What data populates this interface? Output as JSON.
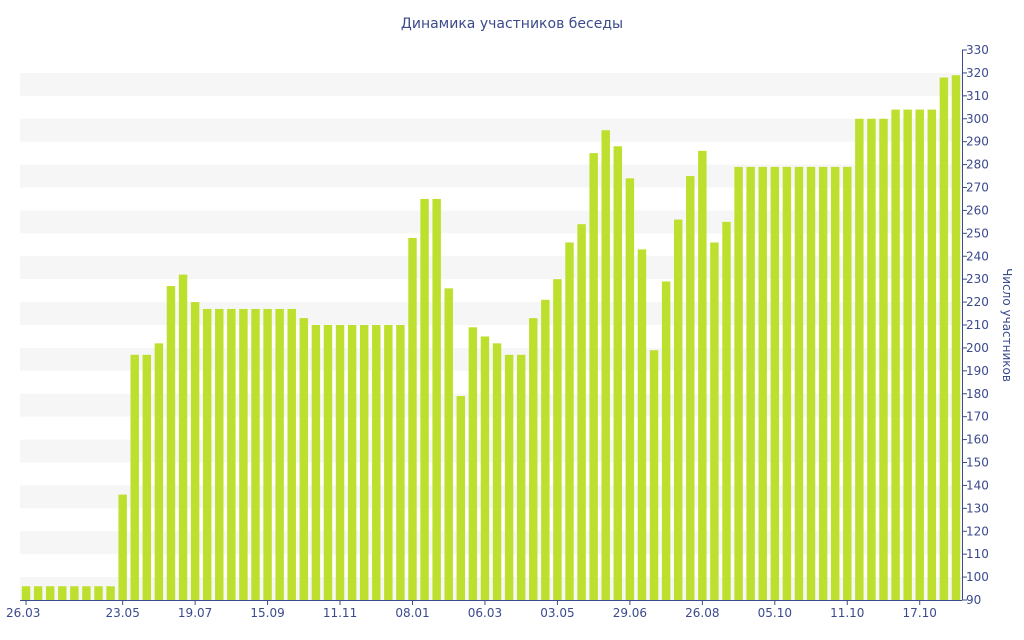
{
  "chart_data": {
    "type": "bar",
    "title": "Динамика участников беседы",
    "ylabel": "Число участников",
    "xlabel": "",
    "ylim": [
      90,
      330
    ],
    "y_ticks": [
      90,
      100,
      110,
      120,
      130,
      140,
      150,
      160,
      170,
      180,
      190,
      200,
      210,
      220,
      230,
      240,
      250,
      260,
      270,
      280,
      290,
      300,
      310,
      320,
      330
    ],
    "y_axis_position": "right",
    "grid": "alternating horizontal bands",
    "bar_color": "#bde02f",
    "text_color": "#3b4a8c",
    "x_tick_labels": [
      {
        "index": 0,
        "label": "26.03"
      },
      {
        "index": 8,
        "label": "23.05"
      },
      {
        "index": 14,
        "label": "19.07"
      },
      {
        "index": 20,
        "label": "15.09"
      },
      {
        "index": 26,
        "label": "11.11"
      },
      {
        "index": 32,
        "label": "08.01"
      },
      {
        "index": 38,
        "label": "06.03"
      },
      {
        "index": 44,
        "label": "03.05"
      },
      {
        "index": 50,
        "label": "29.06"
      },
      {
        "index": 56,
        "label": "26.08"
      },
      {
        "index": 62,
        "label": "05.10"
      },
      {
        "index": 68,
        "label": "11.10"
      },
      {
        "index": 74,
        "label": "17.10"
      }
    ],
    "values": [
      96,
      96,
      96,
      96,
      96,
      96,
      96,
      96,
      136,
      197,
      197,
      202,
      227,
      232,
      220,
      217,
      217,
      217,
      217,
      217,
      217,
      217,
      217,
      213,
      210,
      210,
      210,
      210,
      210,
      210,
      210,
      210,
      248,
      265,
      265,
      226,
      179,
      209,
      205,
      202,
      197,
      197,
      213,
      221,
      230,
      246,
      254,
      285,
      295,
      288,
      274,
      243,
      199,
      229,
      256,
      275,
      286,
      246,
      255,
      279,
      279,
      279,
      279,
      279,
      279,
      279,
      279,
      279,
      279,
      300,
      300,
      300,
      304,
      304,
      304,
      304,
      318,
      319
    ]
  }
}
